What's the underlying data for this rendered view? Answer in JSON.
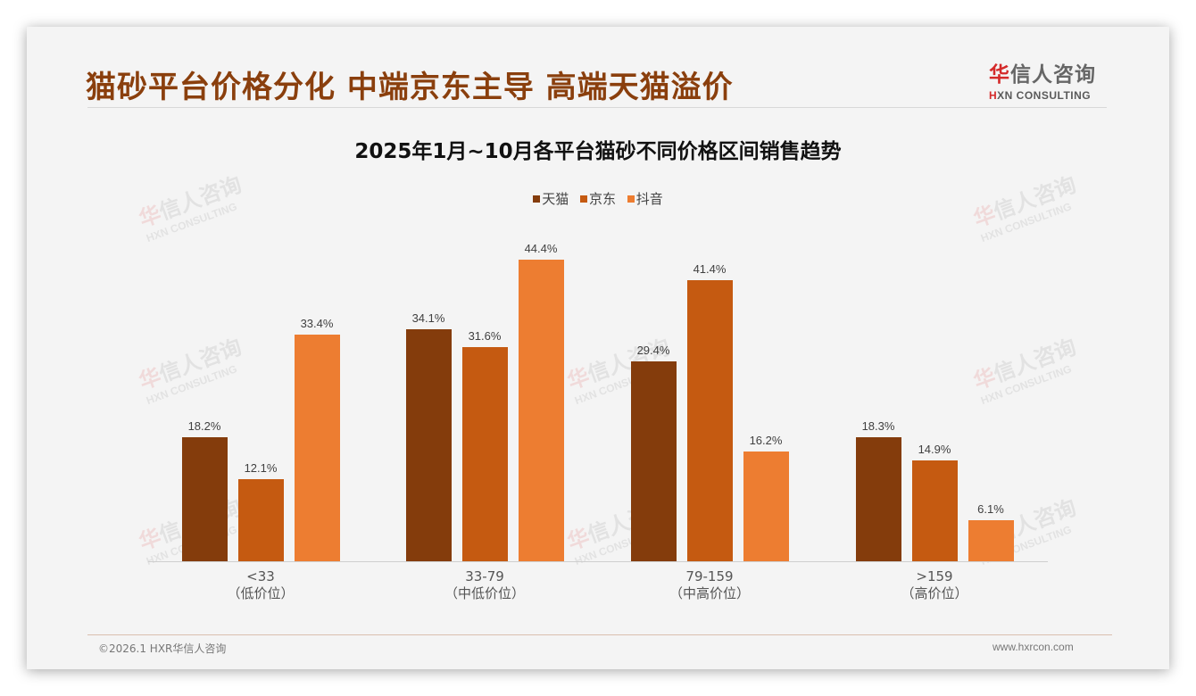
{
  "header": {
    "title": "猫砂平台价格分化 中端京东主导 高端天猫溢价",
    "logo": {
      "cn_accent": "华",
      "cn_rest": "信人咨询",
      "en_accent": "H",
      "en_rest": "XN CONSULTING"
    }
  },
  "watermark": {
    "cn_accent": "华",
    "cn_rest": "信人咨询",
    "en": "HXN CONSULTING"
  },
  "footer": {
    "left": "©2026.1 HXR华信人咨询",
    "right": "www.hxrcon.com"
  },
  "colors": {
    "tmall": "#843c0c",
    "jd": "#c55a11",
    "douyin": "#ed7d31",
    "title": "#8a3f0d"
  },
  "chart_data": {
    "type": "bar",
    "title": "2025年1月~10月各平台猫砂不同价格区间销售趋势",
    "xlabel": "",
    "ylabel": "",
    "ylim": [
      0,
      50
    ],
    "grid": false,
    "legend_position": "top",
    "categories": [
      "<33",
      "33-79",
      "79-159",
      ">159"
    ],
    "category_sublabels": [
      "（低价位）",
      "（中低价位）",
      "（中高价位）",
      "（高价位）"
    ],
    "series": [
      {
        "name": "天猫",
        "color": "#843c0c",
        "values": [
          18.2,
          34.1,
          29.4,
          18.3
        ],
        "labels": [
          "18.2%",
          "34.1%",
          "29.4%",
          "18.3%"
        ]
      },
      {
        "name": "京东",
        "color": "#c55a11",
        "values": [
          12.1,
          31.6,
          41.4,
          14.9
        ],
        "labels": [
          "12.1%",
          "31.6%",
          "41.4%",
          "14.9%"
        ]
      },
      {
        "name": "抖音",
        "color": "#ed7d31",
        "values": [
          33.4,
          44.4,
          16.2,
          6.1
        ],
        "labels": [
          "33.4%",
          "44.4%",
          "16.2%",
          "6.1%"
        ]
      }
    ]
  }
}
